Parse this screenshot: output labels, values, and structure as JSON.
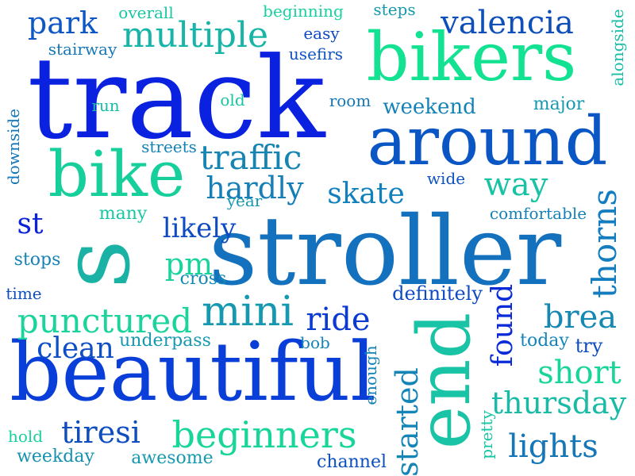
{
  "words": {
    "track": "track",
    "stroller": "stroller",
    "beautiful": "beautiful",
    "bikers": "bikers",
    "around": "around",
    "bike": "bike",
    "end": "end",
    "s": "s",
    "beginners": "beginners",
    "mini": "mini",
    "multiple": "multiple",
    "valencia": "valencia",
    "traffic": "traffic",
    "hardly": "hardly",
    "punctured": "punctured",
    "clean": "clean",
    "park": "park",
    "skate": "skate",
    "way": "way",
    "thorns": "thorns",
    "brea": "brea",
    "short": "short",
    "thursday": "thursday",
    "lights": "lights",
    "started": "started",
    "found": "found",
    "ride": "ride",
    "tiresi": "tiresi",
    "pm": "pm",
    "likely": "likely",
    "st": "st",
    "overall": "overall",
    "beginning": "beginning",
    "steps": "steps",
    "easy": "easy",
    "usefirs": "usefirs",
    "stairway": "stairway",
    "alongside": "alongside",
    "room": "room",
    "weekend": "weekend",
    "major": "major",
    "run": "run",
    "old": "old",
    "downside": "downside",
    "streets": "streets",
    "wide": "wide",
    "year": "year",
    "many": "many",
    "comfortable": "comfortable",
    "stops": "stops",
    "cross": "cross",
    "time": "time",
    "definitely": "definitely",
    "underpass": "underpass",
    "bob": "bob",
    "today": "today",
    "try": "try",
    "enough": "enough",
    "hold": "hold",
    "weekday": "weekday",
    "awesome": "awesome",
    "channel": "channel",
    "pretty": "pretty"
  },
  "palette": {
    "background": "#ffffff",
    "deep_blue": "#0a22e0",
    "mid_blue": "#1471bd",
    "teal": "#1ab2a5",
    "mint_green": "#17cf9b"
  }
}
